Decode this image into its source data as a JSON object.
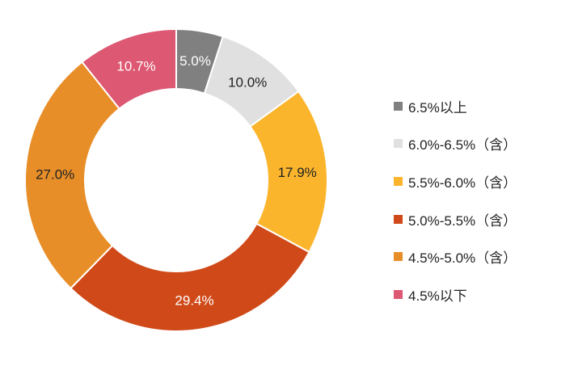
{
  "chart_data": {
    "type": "pie",
    "donut": true,
    "title": "",
    "legend_position": "right",
    "slices": [
      {
        "label": "6.5%以上",
        "value": 5.0,
        "display": "5.0%",
        "color": "#808080",
        "text_color": "#ffffff"
      },
      {
        "label": "6.0%-6.5%（含）",
        "value": 10.0,
        "display": "10.0%",
        "color": "#e0e0e0",
        "text_color": "#222222"
      },
      {
        "label": "5.5%-6.0%（含）",
        "value": 17.9,
        "display": "17.9%",
        "color": "#fbb52d",
        "text_color": "#222222"
      },
      {
        "label": "5.0%-5.5%（含）",
        "value": 29.4,
        "display": "29.4%",
        "color": "#d04a19",
        "text_color": "#ffffff"
      },
      {
        "label": "4.5%-5.0%（含）",
        "value": 27.0,
        "display": "27.0%",
        "color": "#e88e28",
        "text_color": "#222222"
      },
      {
        "label": "4.5%以下",
        "value": 10.7,
        "display": "10.7%",
        "color": "#dd5872",
        "text_color": "#ffffff"
      }
    ]
  }
}
